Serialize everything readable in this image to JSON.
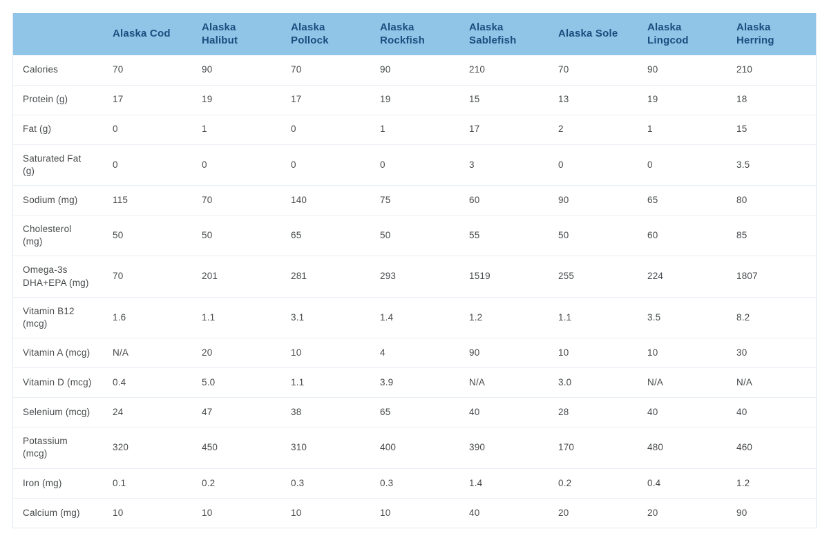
{
  "chart_data": {
    "type": "table",
    "title": "",
    "columns": [
      "Alaska Cod",
      "Alaska Halibut",
      "Alaska Pollock",
      "Alaska Rockfish",
      "Alaska Sablefish",
      "Alaska Sole",
      "Alaska Lingcod",
      "Alaska Herring"
    ],
    "corner_label": "",
    "rows": [
      {
        "label": "Calories",
        "values": [
          "70",
          "90",
          "70",
          "90",
          "210",
          "70",
          "90",
          "210"
        ]
      },
      {
        "label": "Protein (g)",
        "values": [
          "17",
          "19",
          "17",
          "19",
          "15",
          "13",
          "19",
          "18"
        ]
      },
      {
        "label": "Fat (g)",
        "values": [
          "0",
          "1",
          "0",
          "1",
          "17",
          "2",
          "1",
          "15"
        ]
      },
      {
        "label": "Saturated Fat (g)",
        "values": [
          "0",
          "0",
          "0",
          "0",
          "3",
          "0",
          "0",
          "3.5"
        ]
      },
      {
        "label": "Sodium (mg)",
        "values": [
          "115",
          "70",
          "140",
          "75",
          "60",
          "90",
          "65",
          "80"
        ]
      },
      {
        "label": "Cholesterol (mg)",
        "values": [
          "50",
          "50",
          "65",
          "50",
          "55",
          "50",
          "60",
          "85"
        ]
      },
      {
        "label": "Omega-3s DHA+EPA (mg)",
        "values": [
          "70",
          "201",
          "281",
          "293",
          "1519",
          "255",
          "224",
          "1807"
        ]
      },
      {
        "label": "Vitamin B12 (mcg)",
        "values": [
          "1.6",
          "1.1",
          "3.1",
          "1.4",
          "1.2",
          "1.1",
          "3.5",
          "8.2"
        ]
      },
      {
        "label": "Vitamin A (mcg)",
        "values": [
          "N/A",
          "20",
          "10",
          "4",
          "90",
          "10",
          "10",
          "30"
        ]
      },
      {
        "label": "Vitamin D (mcg)",
        "values": [
          "0.4",
          "5.0",
          "1.1",
          "3.9",
          "N/A",
          "3.0",
          "N/A",
          "N/A"
        ]
      },
      {
        "label": "Selenium (mcg)",
        "values": [
          "24",
          "47",
          "38",
          "65",
          "40",
          "28",
          "40",
          "40"
        ]
      },
      {
        "label": "Potassium (mcg)",
        "values": [
          "320",
          "450",
          "310",
          "400",
          "390",
          "170",
          "480",
          "460"
        ]
      },
      {
        "label": "Iron (mg)",
        "values": [
          "0.1",
          "0.2",
          "0.3",
          "0.3",
          "1.4",
          "0.2",
          "0.4",
          "1.2"
        ]
      },
      {
        "label": "Calcium (mg)",
        "values": [
          "10",
          "10",
          "10",
          "10",
          "40",
          "20",
          "20",
          "90"
        ]
      }
    ]
  },
  "colors": {
    "header_bg": "#90c5e7",
    "header_text": "#1b4d7e",
    "body_text": "#46494b",
    "row_border": "#e9eef5",
    "outer_border": "#dfe7f1",
    "page_bg": "#ffffff"
  }
}
